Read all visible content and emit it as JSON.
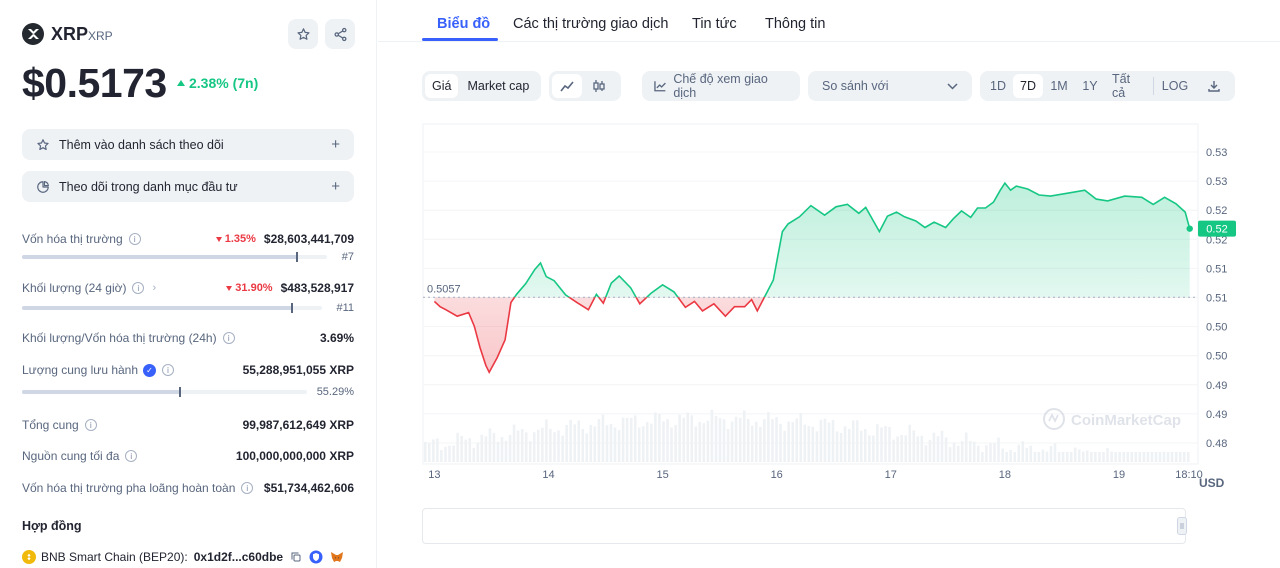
{
  "coin": {
    "name": "XRP",
    "symbol": "XRP",
    "price": "$0.5173",
    "change": "2.38% (7n)"
  },
  "actions": {
    "watchlist": "Thêm vào danh sách theo dõi",
    "portfolio": "Theo dõi trong danh mục đầu tư"
  },
  "stats": {
    "market_cap": {
      "label": "Vốn hóa thị trường",
      "change": "1.35%",
      "value": "$28,603,441,709",
      "rank": "#7",
      "level": 0.9
    },
    "volume": {
      "label": "Khối lượng (24 giờ)",
      "change": "31.90%",
      "value": "$483,528,917",
      "rank": "#11",
      "level": 0.9
    },
    "vol_mcap": {
      "label": "Khối lượng/Vốn hóa thị trường (24h)",
      "value": "3.69%"
    },
    "circulating": {
      "label": "Lượng cung lưu hành",
      "value": "55,288,951,055 XRP",
      "percent": "55.29%",
      "level": 0.5529
    },
    "total_supply": {
      "label": "Tổng cung",
      "value": "99,987,612,649 XRP"
    },
    "max_supply": {
      "label": "Nguồn cung tối đa",
      "value": "100,000,000,000 XRP"
    },
    "fdv": {
      "label": "Vốn hóa thị trường pha loãng hoàn toàn",
      "value": "$51,734,462,606"
    }
  },
  "contracts": {
    "title": "Hợp đồng",
    "chain": "BNB Smart Chain (BEP20):",
    "address": "0x1d2f...c60dbe"
  },
  "tabs": [
    "Biểu đồ",
    "Các thị trường giao dịch",
    "Tin tức",
    "Thông tin"
  ],
  "toolbar": {
    "price": "Giá",
    "market_cap": "Market cap",
    "trading_view": "Chế độ xem giao dịch",
    "compare": "So sánh với",
    "ranges": [
      "1D",
      "7D",
      "1M",
      "1Y",
      "Tất cả"
    ],
    "log": "LOG",
    "selected_range": "7D"
  },
  "icons": {
    "star": "star-icon",
    "share": "share-icon",
    "line": "line-chart-icon",
    "candle": "candlestick-icon",
    "download": "download-icon",
    "check": "check-icon",
    "copy": "copy-icon",
    "metamask": "metamask-icon"
  },
  "colors": {
    "up": "#16c784",
    "down": "#ea3943",
    "accent": "#3861fb"
  },
  "chart_data": {
    "type": "area",
    "currency": "USD",
    "open_price": 0.5057,
    "open_label": "0.5057",
    "last_label": "0.52",
    "watermark": "CoinMarketCap",
    "x_ticks": [
      "13",
      "14",
      "15",
      "16",
      "17",
      "18",
      "19",
      "18:10"
    ],
    "y_ticks": [
      "0.53",
      "0.53",
      "0.52",
      "0.52",
      "0.51",
      "0.51",
      "0.50",
      "0.50",
      "0.49",
      "0.49",
      "0.48"
    ],
    "y_range": [
      0.4775,
      0.535
    ],
    "x_range": [
      -0.1,
      6.64
    ],
    "price": [
      [
        0.0,
        0.505
      ],
      [
        0.05,
        0.5041
      ],
      [
        0.1,
        0.5036
      ],
      [
        0.2,
        0.5025
      ],
      [
        0.3,
        0.5031
      ],
      [
        0.35,
        0.5008
      ],
      [
        0.4,
        0.4972
      ],
      [
        0.45,
        0.4942
      ],
      [
        0.48,
        0.493
      ],
      [
        0.55,
        0.4955
      ],
      [
        0.62,
        0.4985
      ],
      [
        0.67,
        0.5048
      ],
      [
        0.72,
        0.5062
      ],
      [
        0.8,
        0.508
      ],
      [
        0.88,
        0.5104
      ],
      [
        0.93,
        0.5115
      ],
      [
        0.98,
        0.5092
      ],
      [
        1.05,
        0.5085
      ],
      [
        1.15,
        0.5061
      ],
      [
        1.25,
        0.5048
      ],
      [
        1.35,
        0.5036
      ],
      [
        1.42,
        0.5062
      ],
      [
        1.48,
        0.5047
      ],
      [
        1.55,
        0.5081
      ],
      [
        1.62,
        0.5093
      ],
      [
        1.72,
        0.5073
      ],
      [
        1.8,
        0.5046
      ],
      [
        1.9,
        0.5064
      ],
      [
        2.0,
        0.5078
      ],
      [
        2.1,
        0.5066
      ],
      [
        2.2,
        0.504
      ],
      [
        2.28,
        0.505
      ],
      [
        2.35,
        0.5034
      ],
      [
        2.45,
        0.5046
      ],
      [
        2.55,
        0.5025
      ],
      [
        2.63,
        0.5041
      ],
      [
        2.72,
        0.5041
      ],
      [
        2.78,
        0.5053
      ],
      [
        2.83,
        0.5034
      ],
      [
        2.9,
        0.506
      ],
      [
        2.97,
        0.5086
      ],
      [
        3.05,
        0.5168
      ],
      [
        3.1,
        0.5181
      ],
      [
        3.2,
        0.5193
      ],
      [
        3.3,
        0.5212
      ],
      [
        3.42,
        0.5196
      ],
      [
        3.52,
        0.521
      ],
      [
        3.62,
        0.5214
      ],
      [
        3.72,
        0.5199
      ],
      [
        3.78,
        0.5209
      ],
      [
        3.9,
        0.5168
      ],
      [
        3.97,
        0.5194
      ],
      [
        4.05,
        0.5201
      ],
      [
        4.12,
        0.5193
      ],
      [
        4.22,
        0.5186
      ],
      [
        4.3,
        0.5175
      ],
      [
        4.38,
        0.5184
      ],
      [
        4.48,
        0.5175
      ],
      [
        4.55,
        0.519
      ],
      [
        4.62,
        0.5203
      ],
      [
        4.7,
        0.5192
      ],
      [
        4.76,
        0.5208
      ],
      [
        4.83,
        0.5208
      ],
      [
        4.9,
        0.5218
      ],
      [
        4.96,
        0.5238
      ],
      [
        5.0,
        0.525
      ],
      [
        5.05,
        0.5238
      ],
      [
        5.1,
        0.5245
      ],
      [
        5.2,
        0.524
      ],
      [
        5.3,
        0.523
      ],
      [
        5.4,
        0.5228
      ],
      [
        5.55,
        0.5233
      ],
      [
        5.7,
        0.5238
      ],
      [
        5.8,
        0.5223
      ],
      [
        5.9,
        0.522
      ],
      [
        6.05,
        0.5228
      ],
      [
        6.2,
        0.5226
      ],
      [
        6.3,
        0.5214
      ],
      [
        6.4,
        0.5226
      ],
      [
        6.5,
        0.5215
      ],
      [
        6.58,
        0.5201
      ],
      [
        6.62,
        0.5173
      ]
    ]
  }
}
